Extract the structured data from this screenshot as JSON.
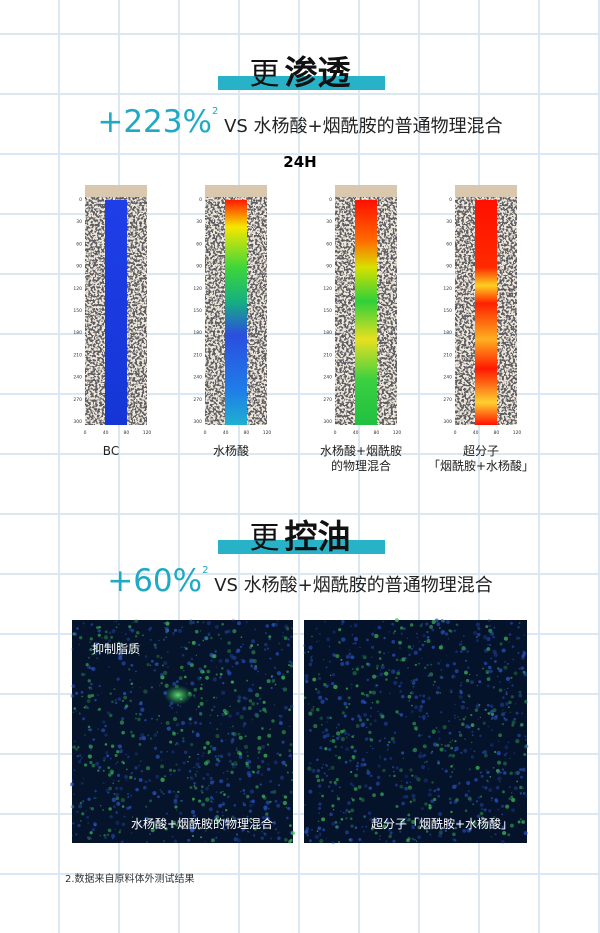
{
  "penetration": {
    "title_prefix": "更",
    "title_emphasis": "渗透",
    "stat": "+223%",
    "footnote_mark": "2",
    "comparison": "VS 水杨酸+烟酰胺的普通物理混合",
    "timepoint": "24H",
    "depth_ticks": [
      0,
      30,
      60,
      90,
      120,
      150,
      180,
      210,
      240,
      270,
      300
    ],
    "width_ticks": [
      0,
      40,
      80,
      120
    ],
    "panels": [
      [
        "BC"
      ],
      [
        "水杨酸"
      ],
      [
        "水杨酸+烟酰胺",
        "的物理混合"
      ],
      [
        "超分子",
        "「烟酰胺+水杨酸」"
      ]
    ]
  },
  "oil_control": {
    "title_prefix": "更",
    "title_emphasis": "控油",
    "stat": "+60%",
    "footnote_mark": "2",
    "comparison": "VS 水杨酸+烟酰胺的普通物理混合",
    "image_label": "抑制脂质",
    "captions": [
      "水杨酸+烟酰胺的物理混合",
      "超分子「烟酰胺+水杨酸」"
    ]
  },
  "footnote": "2.数据来自原料体外测试结果"
}
